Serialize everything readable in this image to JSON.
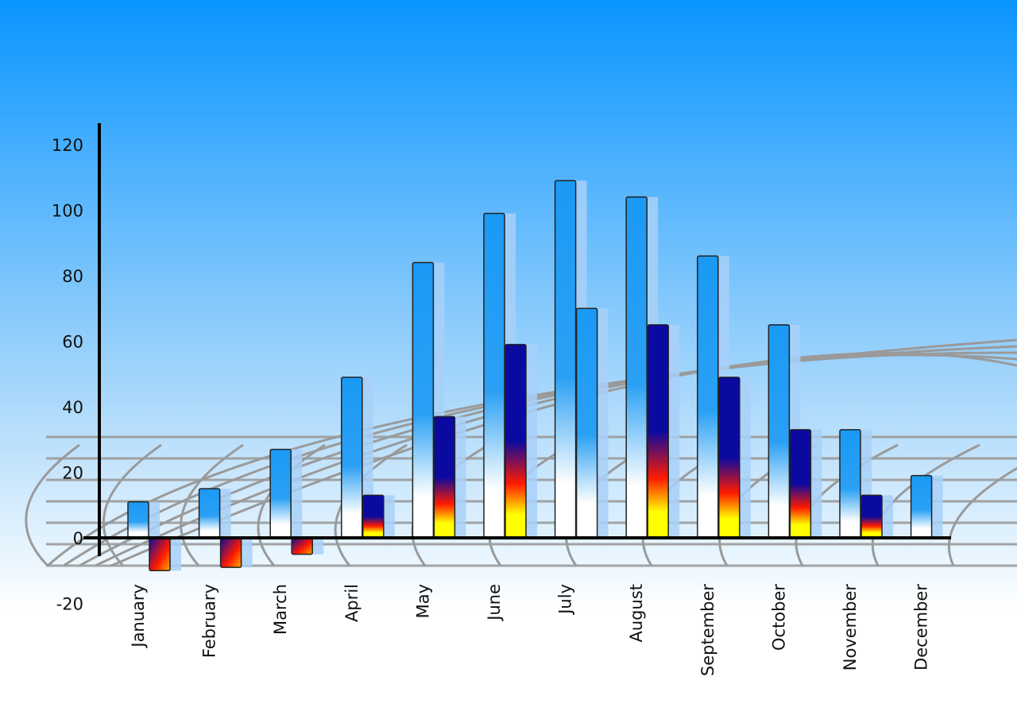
{
  "chart_data": {
    "type": "bar",
    "title": "",
    "xlabel": "",
    "ylabel": "",
    "ylim": [
      -20,
      120
    ],
    "yticks": [
      120,
      100,
      80,
      60,
      40,
      20,
      0,
      -20
    ],
    "grid": false,
    "categories": [
      "January",
      "February",
      "March",
      "April",
      "May",
      "June",
      "July",
      "August",
      "September",
      "October",
      "November",
      "December"
    ],
    "series": [
      {
        "values": [
          11,
          15,
          27,
          49,
          84,
          99,
          109,
          104,
          86,
          65,
          33,
          19
        ],
        "color": "#1a9af5"
      },
      {
        "values": [
          -10,
          -9,
          -5,
          13,
          37,
          59,
          70,
          65,
          49,
          33,
          13,
          null
        ],
        "color": "#0a0aa0"
      }
    ],
    "colors": {
      "background_top": "#0a95ff",
      "background_bottom": "#ffffff",
      "bar_blue": "#1a9af5",
      "bar_dark": "#0a0aa0",
      "bar_red": "#ff1a00",
      "bar_yellow": "#ffff00"
    }
  }
}
